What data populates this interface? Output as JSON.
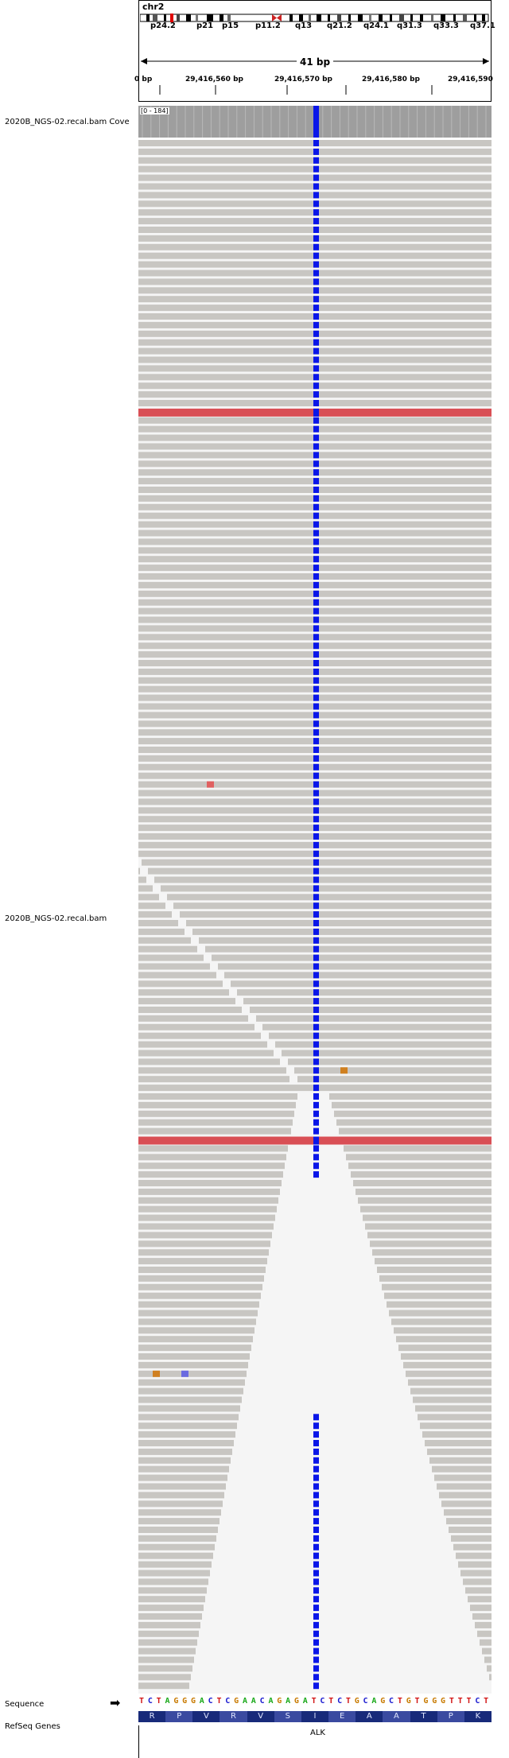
{
  "chromosome": {
    "name": "chr2",
    "bands": [
      "p24.2",
      "p21",
      "p15",
      "p11.2",
      "q13",
      "q21.2",
      "q24.1",
      "q31.3",
      "q33.3",
      "q37.1"
    ]
  },
  "ruler": {
    "span": "41 bp",
    "ticks": [
      "0 bp",
      "29,416,560 bp",
      "29,416,570 bp",
      "29,416,580 bp",
      "29,416,590"
    ]
  },
  "tracks": {
    "coverage_label": "2020B_NGS-02.recal.bam Cove",
    "coverage_range": "[0 - 184]",
    "alignment_label": "2020B_NGS-02.recal.bam",
    "sequence_label": "Sequence",
    "refseq_label": "RefSeq Genes"
  },
  "sequence": {
    "bases": "TCTAGGGACTCGAACAGAGATCTCTGCAGCTGTGGGTTTCT",
    "arrow": "➡"
  },
  "amino_acids": [
    "R",
    "P",
    "V",
    "R",
    "V",
    "S",
    "I",
    "E",
    "A",
    "A",
    "T",
    "P",
    "K"
  ],
  "gene": {
    "name": "ALK"
  },
  "colors": {
    "read": "#c8c6c2",
    "insertion_highlight": "#d94f55",
    "variant_blue": "#0a16e8",
    "coverage": "#9e9e9e",
    "A": "#18a818",
    "C": "#1a1ad0",
    "G": "#c87a00",
    "T": "#d21414"
  }
}
